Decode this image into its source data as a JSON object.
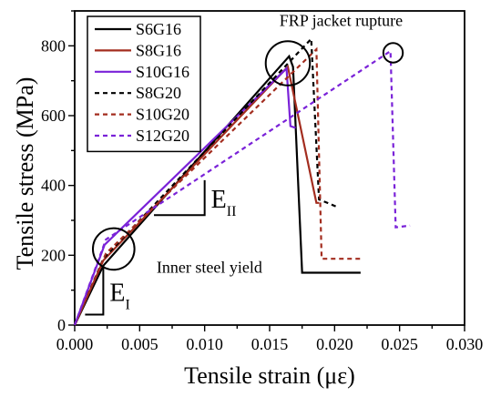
{
  "chart_data": {
    "type": "line",
    "xlabel": "Tensile strain (με)",
    "ylabel": "Tensile stress (MPa)",
    "xlim": [
      0,
      0.03
    ],
    "ylim": [
      0,
      900
    ],
    "x_ticks": [
      "0.000",
      "0.005",
      "0.010",
      "0.015",
      "0.020",
      "0.025",
      "0.030"
    ],
    "y_ticks": [
      "0",
      "200",
      "400",
      "600",
      "800"
    ],
    "legend_position": "top-left",
    "grid": false,
    "series": [
      {
        "name": "S6G16",
        "color": "#000000",
        "dash": "solid",
        "points": [
          [
            0.0,
            0
          ],
          [
            0.0022,
            170
          ],
          [
            0.0165,
            770
          ],
          [
            0.0168,
            740
          ],
          [
            0.0175,
            150
          ],
          [
            0.022,
            150
          ]
        ]
      },
      {
        "name": "S8G16",
        "color": "#a32d1f",
        "dash": "solid",
        "points": [
          [
            0.0,
            0
          ],
          [
            0.0022,
            185
          ],
          [
            0.0164,
            740
          ],
          [
            0.0186,
            350
          ],
          [
            0.0188,
            350
          ]
        ]
      },
      {
        "name": "S10G16",
        "color": "#7a22d8",
        "dash": "solid",
        "points": [
          [
            0.0,
            0
          ],
          [
            0.0023,
            230
          ],
          [
            0.0163,
            735
          ],
          [
            0.0166,
            570
          ],
          [
            0.017,
            565
          ]
        ]
      },
      {
        "name": "S8G20",
        "color": "#000000",
        "dash": "dashed",
        "points": [
          [
            0.0,
            0
          ],
          [
            0.0022,
            190
          ],
          [
            0.0182,
            820
          ],
          [
            0.0188,
            360
          ],
          [
            0.0201,
            340
          ]
        ]
      },
      {
        "name": "S10G20",
        "color": "#a32d1f",
        "dash": "dashed",
        "points": [
          [
            0.0,
            0
          ],
          [
            0.0024,
            205
          ],
          [
            0.0186,
            790
          ],
          [
            0.019,
            190
          ],
          [
            0.0222,
            190
          ]
        ]
      },
      {
        "name": "S12G20",
        "color": "#7a22d8",
        "dash": "dashed",
        "points": [
          [
            0.0,
            0
          ],
          [
            0.0024,
            245
          ],
          [
            0.0243,
            785
          ],
          [
            0.0247,
            280
          ],
          [
            0.0258,
            285
          ]
        ]
      }
    ],
    "annotations": [
      {
        "text": "FRP jacket rupture",
        "x": 0.0205,
        "y": 870
      },
      {
        "text": "Inner steel yield",
        "x": 0.0063,
        "y": 160
      }
    ],
    "slope_markers": [
      {
        "label": "E",
        "subscript": "I",
        "x0": 0.0008,
        "x1": 0.0022,
        "y0": 30,
        "y1": 165
      },
      {
        "label": "E",
        "subscript": "II",
        "x0": 0.0061,
        "x1": 0.01,
        "y0": 315,
        "y1": 415
      }
    ],
    "highlight_circles": [
      {
        "x": 0.0164,
        "y": 750,
        "r": 0.0017
      },
      {
        "x": 0.003,
        "y": 218,
        "r": 0.0016
      },
      {
        "x": 0.0245,
        "y": 780,
        "r": 0.00075
      }
    ]
  }
}
